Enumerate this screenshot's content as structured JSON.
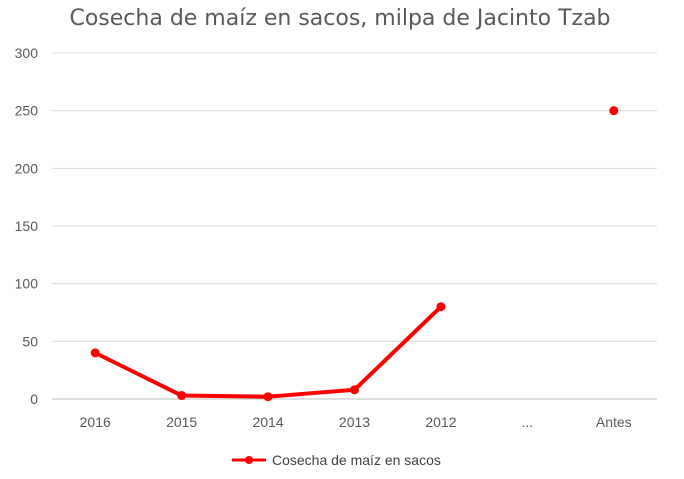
{
  "chart_data": {
    "type": "line",
    "title": "Cosecha de maíz en sacos, milpa de Jacinto Tzab",
    "xlabel": "",
    "ylabel": "",
    "categories": [
      "2016",
      "2015",
      "2014",
      "2013",
      "2012",
      "...",
      "Antes"
    ],
    "y_ticks": [
      "0",
      "50",
      "100",
      "150",
      "200",
      "250",
      "300"
    ],
    "ylim": [
      0,
      300
    ],
    "grid": true,
    "legend_position": "bottom",
    "series": [
      {
        "name": "Cosecha de maíz en sacos",
        "color": "#ff0000",
        "values": [
          40,
          3,
          2,
          8,
          80,
          null,
          250
        ]
      }
    ]
  }
}
